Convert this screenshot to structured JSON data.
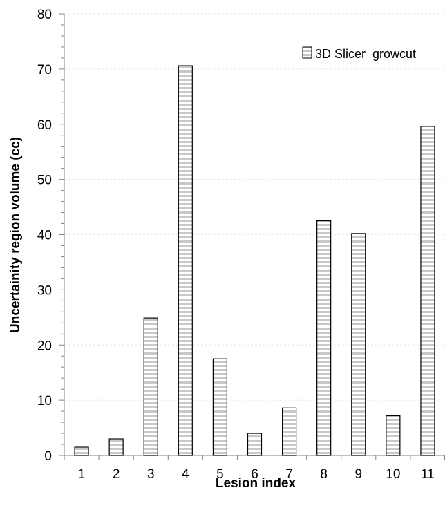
{
  "chart_data": {
    "type": "bar",
    "xlabel": "Lesion index",
    "ylabel": "Uncertainity region volume (cc)",
    "categories": [
      "1",
      "2",
      "3",
      "4",
      "5",
      "6",
      "7",
      "8",
      "9",
      "10",
      "11"
    ],
    "series": [
      {
        "name": "3D Slicer  growcut",
        "values": [
          1.5,
          3.0,
          24.9,
          70.6,
          17.5,
          4.0,
          8.6,
          42.5,
          40.2,
          7.2,
          59.6
        ]
      }
    ],
    "ylim": [
      0,
      80
    ],
    "yticks": [
      0,
      10,
      20,
      30,
      40,
      50,
      60,
      70,
      80
    ],
    "grid": true,
    "legend_position": "top-right",
    "bar_pattern": "horizontal-stripes",
    "colors": {
      "bar_fill": "#ffffff",
      "stripe": "#c8c8c8",
      "bar_stroke": "#000000",
      "axis": "#808080",
      "grid": "#e6e6e6"
    }
  }
}
